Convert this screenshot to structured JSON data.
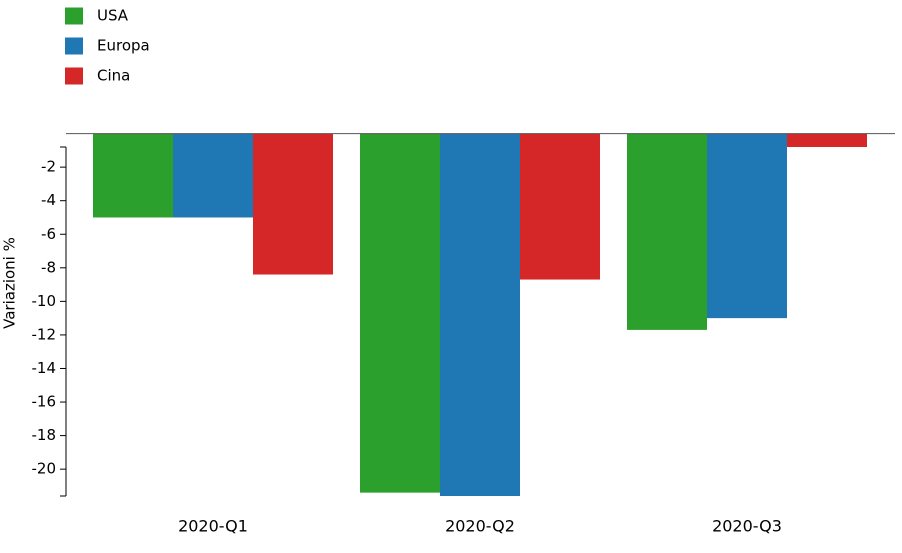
{
  "chart_data": {
    "type": "bar",
    "y_label": "Variazioni %",
    "categories": [
      "2020-Q1",
      "2020-Q2",
      "2020-Q3"
    ],
    "series": [
      {
        "name": "USA",
        "color": "#2ca02c",
        "values": [
          -5.0,
          -21.4,
          -11.7
        ]
      },
      {
        "name": "Europa",
        "color": "#1f77b4",
        "values": [
          -5.0,
          -21.6,
          -11.0
        ]
      },
      {
        "name": "Cina",
        "color": "#d62728",
        "values": [
          -8.4,
          -8.7,
          -0.8
        ]
      }
    ],
    "ylim": [
      -21.6,
      -0.8
    ],
    "yticks": [
      -2,
      -4,
      -6,
      -8,
      -10,
      -12,
      -14,
      -16,
      -18,
      -20
    ],
    "legend": "top-left"
  }
}
